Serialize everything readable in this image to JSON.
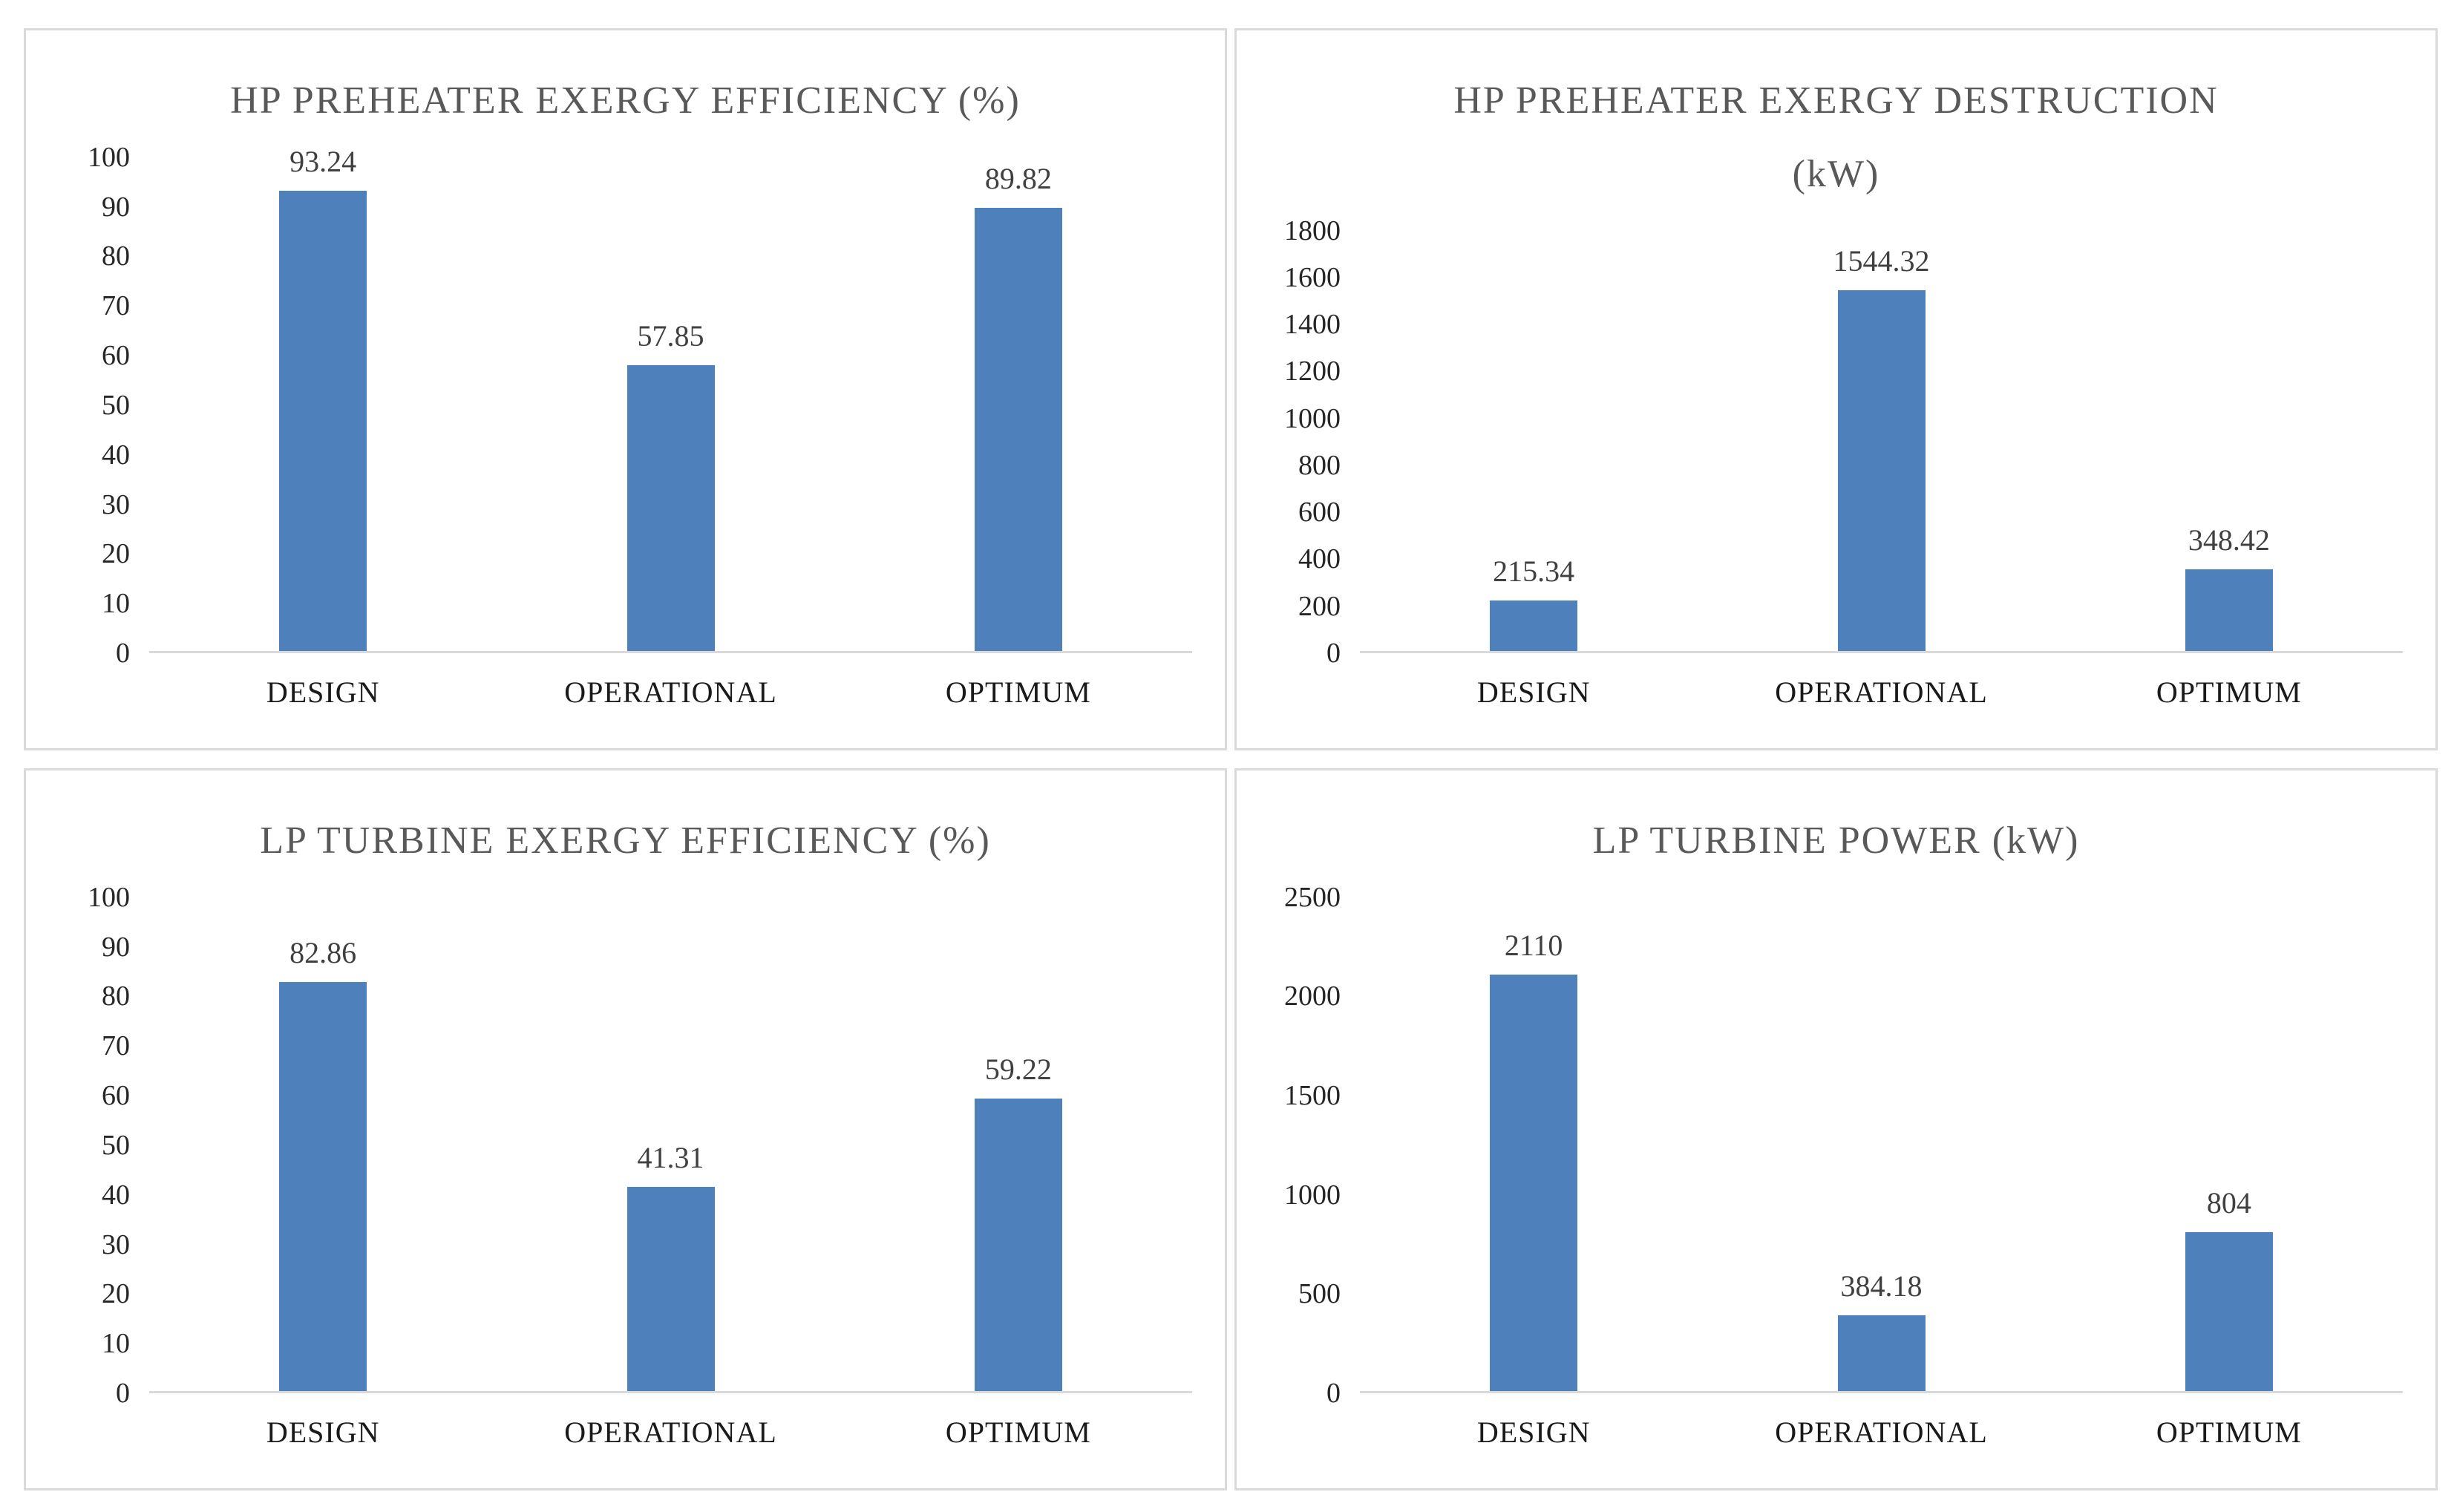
{
  "page": {
    "background": "#ffffff",
    "panel_background": "#ffffff",
    "panel_border_color": "#dadada"
  },
  "colors": {
    "bar": "#4e80bc",
    "title": "#595959",
    "axis_tick": "#262626",
    "category_label": "#1a1a1a",
    "data_label": "#404040",
    "baseline": "#d9d9d9"
  },
  "chart_data": [
    {
      "id": "hp-preheater-exergy-efficiency",
      "type": "bar",
      "title": "HP PREHEATER EXERGY EFFICIENCY (%)",
      "title_lines": [
        "HP PREHEATER EXERGY EFFICIENCY (%)"
      ],
      "categories": [
        "DESIGN",
        "OPERATIONAL",
        "OPTIMUM"
      ],
      "values": [
        93.24,
        57.85,
        89.82
      ],
      "value_labels": [
        "93.24",
        "57.85",
        "89.82"
      ],
      "ylim": [
        0,
        100
      ],
      "yticks": [
        0,
        10,
        20,
        30,
        40,
        50,
        60,
        70,
        80,
        90,
        100
      ],
      "xlabel": "",
      "ylabel": "",
      "legend": "none",
      "grid": false
    },
    {
      "id": "hp-preheater-exergy-destruction",
      "type": "bar",
      "title": "HP PREHEATER EXERGY DESTRUCTION (kW)",
      "title_lines": [
        "HP PREHEATER EXERGY DESTRUCTION",
        "(kW)"
      ],
      "categories": [
        "DESIGN",
        "OPERATIONAL",
        "OPTIMUM"
      ],
      "values": [
        215.34,
        1544.32,
        348.42
      ],
      "value_labels": [
        "215.34",
        "1544.32",
        "348.42"
      ],
      "ylim": [
        0,
        1800
      ],
      "yticks": [
        0,
        200,
        400,
        600,
        800,
        1000,
        1200,
        1400,
        1600,
        1800
      ],
      "xlabel": "",
      "ylabel": "",
      "legend": "none",
      "grid": false
    },
    {
      "id": "lp-turbine-exergy-efficiency",
      "type": "bar",
      "title": "LP TURBINE EXERGY EFFICIENCY (%)",
      "title_lines": [
        "LP TURBINE EXERGY EFFICIENCY (%)"
      ],
      "categories": [
        "DESIGN",
        "OPERATIONAL",
        "OPTIMUM"
      ],
      "values": [
        82.86,
        41.31,
        59.22
      ],
      "value_labels": [
        "82.86",
        "41.31",
        "59.22"
      ],
      "ylim": [
        0,
        100
      ],
      "yticks": [
        0,
        10,
        20,
        30,
        40,
        50,
        60,
        70,
        80,
        90,
        100
      ],
      "xlabel": "",
      "ylabel": "",
      "legend": "none",
      "grid": false
    },
    {
      "id": "lp-turbine-power",
      "type": "bar",
      "title": "LP TURBINE POWER (kW)",
      "title_lines": [
        "LP TURBINE POWER (kW)"
      ],
      "categories": [
        "DESIGN",
        "OPERATIONAL",
        "OPTIMUM"
      ],
      "values": [
        2110,
        384.18,
        804
      ],
      "value_labels": [
        "2110",
        "384.18",
        "804"
      ],
      "ylim": [
        0,
        2500
      ],
      "yticks": [
        0,
        500,
        1000,
        1500,
        2000,
        2500
      ],
      "xlabel": "",
      "ylabel": "",
      "legend": "none",
      "grid": false
    }
  ]
}
